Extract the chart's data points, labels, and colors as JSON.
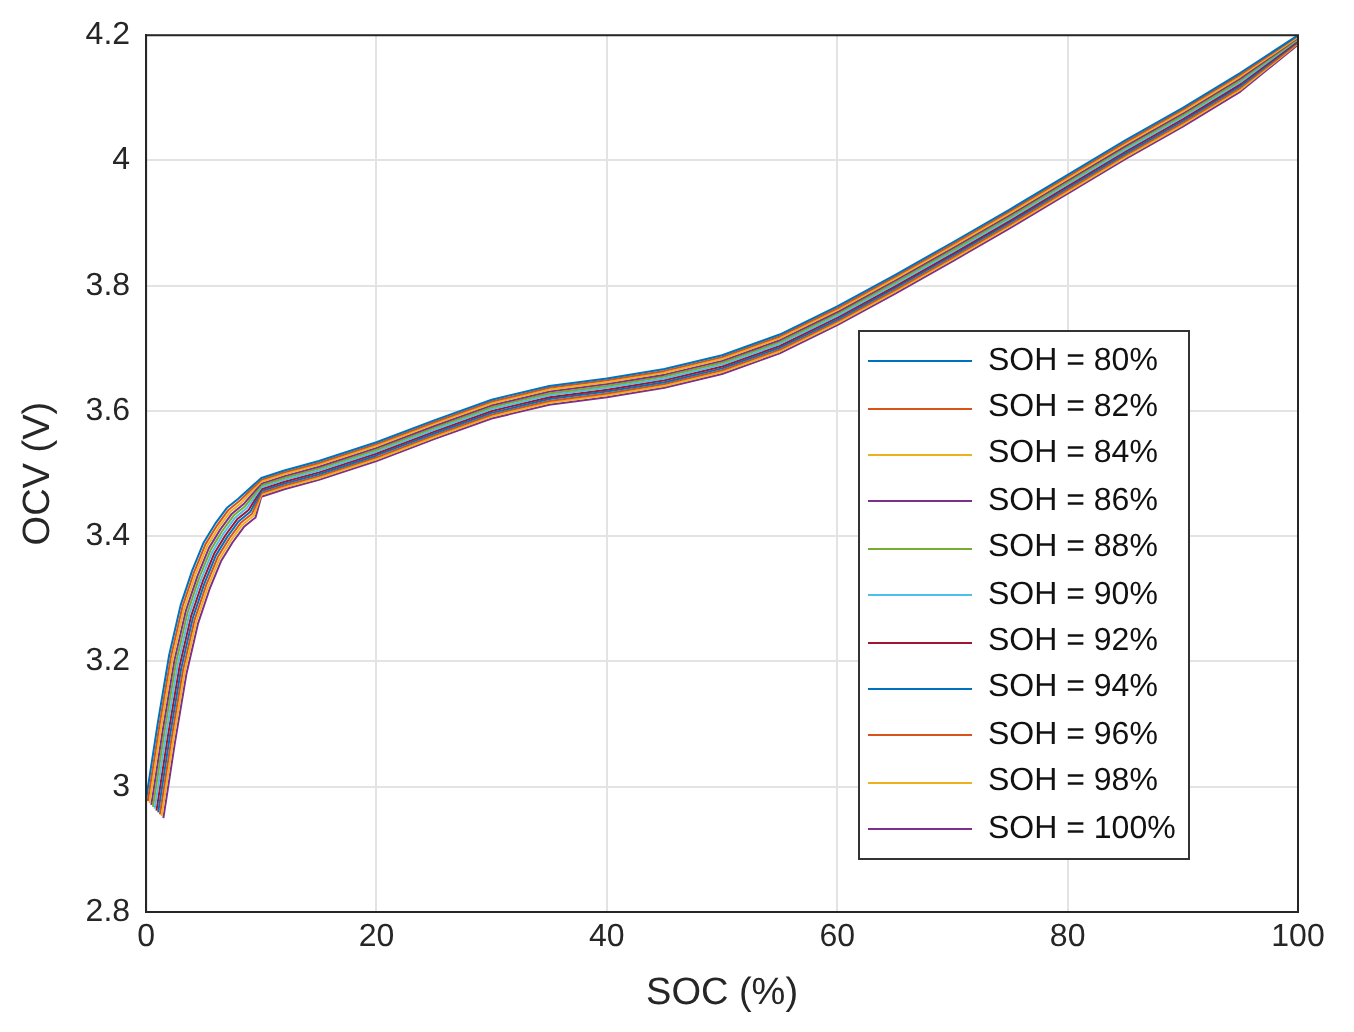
{
  "chart_data": {
    "type": "line",
    "xlabel": "SOC (%)",
    "ylabel": "OCV (V)",
    "xlim": [
      0,
      100
    ],
    "xticks": [
      0,
      20,
      40,
      60,
      80,
      100
    ],
    "ylim": [
      2.8,
      4.2
    ],
    "yticks": [
      2.8,
      3,
      3.2,
      3.4,
      3.6,
      3.8,
      4,
      4.2
    ],
    "grid": true,
    "legend": "bottom right",
    "marker": "none",
    "line_style": "solid",
    "series": [
      {
        "name": "SOH = 80%",
        "color": "#0072bd",
        "x": [
          0,
          1,
          2,
          3,
          4,
          5,
          6,
          7,
          8,
          10,
          12,
          15,
          20,
          25,
          30,
          35,
          40,
          45,
          50,
          55,
          60,
          65,
          70,
          75,
          80,
          85,
          90,
          95,
          100
        ],
        "values": [
          2.98,
          3.1,
          3.21,
          3.29,
          3.345,
          3.39,
          3.42,
          3.445,
          3.46,
          3.493,
          3.505,
          3.52,
          3.55,
          3.585,
          3.618,
          3.64,
          3.652,
          3.667,
          3.689,
          3.722,
          3.767,
          3.817,
          3.869,
          3.922,
          3.977,
          4.032,
          4.084,
          4.14,
          4.2
        ]
      },
      {
        "name": "SOH = 82%",
        "color": "#d95319",
        "x": [
          0.15,
          1.15,
          2.15,
          3.15,
          4.15,
          5.15,
          6.15,
          7.15,
          8.15,
          10,
          12,
          15,
          20,
          25,
          30,
          35,
          40,
          45,
          50,
          55,
          60,
          65,
          70,
          75,
          80,
          85,
          90,
          95,
          100
        ],
        "values": [
          2.977,
          3.097,
          3.207,
          3.287,
          3.342,
          3.387,
          3.417,
          3.442,
          3.457,
          3.49,
          3.502,
          3.517,
          3.547,
          3.582,
          3.615,
          3.637,
          3.649,
          3.664,
          3.686,
          3.719,
          3.764,
          3.814,
          3.866,
          3.919,
          3.974,
          4.029,
          4.081,
          4.137,
          4.199
        ]
      },
      {
        "name": "SOH = 84%",
        "color": "#edb120",
        "x": [
          0.3,
          1.3,
          2.3,
          3.3,
          4.3,
          5.3,
          6.3,
          7.3,
          8.3,
          10,
          12,
          15,
          20,
          25,
          30,
          35,
          40,
          45,
          50,
          55,
          60,
          65,
          70,
          75,
          80,
          85,
          90,
          95,
          100
        ],
        "values": [
          2.974,
          3.094,
          3.204,
          3.284,
          3.339,
          3.384,
          3.414,
          3.439,
          3.454,
          3.487,
          3.499,
          3.514,
          3.544,
          3.579,
          3.612,
          3.634,
          3.646,
          3.661,
          3.683,
          3.716,
          3.761,
          3.811,
          3.863,
          3.916,
          3.971,
          4.026,
          4.078,
          4.134,
          4.197
        ]
      },
      {
        "name": "SOH = 86%",
        "color": "#7e2f8e",
        "x": [
          0.45,
          1.45,
          2.45,
          3.45,
          4.45,
          5.45,
          6.45,
          7.45,
          8.45,
          10,
          12,
          15,
          20,
          25,
          30,
          35,
          40,
          45,
          50,
          55,
          60,
          65,
          70,
          75,
          80,
          85,
          90,
          95,
          100
        ],
        "values": [
          2.971,
          3.091,
          3.201,
          3.281,
          3.336,
          3.381,
          3.411,
          3.436,
          3.451,
          3.484,
          3.496,
          3.511,
          3.541,
          3.576,
          3.609,
          3.631,
          3.643,
          3.658,
          3.68,
          3.713,
          3.758,
          3.808,
          3.86,
          3.913,
          3.968,
          4.023,
          4.075,
          4.131,
          4.196
        ]
      },
      {
        "name": "SOH = 88%",
        "color": "#77ac30",
        "x": [
          0.6,
          1.6,
          2.6,
          3.6,
          4.6,
          5.6,
          6.6,
          7.6,
          8.6,
          10,
          12,
          15,
          20,
          25,
          30,
          35,
          40,
          45,
          50,
          55,
          60,
          65,
          70,
          75,
          80,
          85,
          90,
          95,
          100
        ],
        "values": [
          2.968,
          3.088,
          3.198,
          3.278,
          3.333,
          3.378,
          3.408,
          3.433,
          3.448,
          3.481,
          3.493,
          3.508,
          3.538,
          3.573,
          3.606,
          3.628,
          3.64,
          3.655,
          3.677,
          3.71,
          3.755,
          3.805,
          3.857,
          3.91,
          3.965,
          4.02,
          4.072,
          4.128,
          4.194
        ]
      },
      {
        "name": "SOH = 90%",
        "color": "#4dbeee",
        "x": [
          0.75,
          1.75,
          2.75,
          3.75,
          4.75,
          5.75,
          6.75,
          7.75,
          8.75,
          10,
          12,
          15,
          20,
          25,
          30,
          35,
          40,
          45,
          50,
          55,
          60,
          65,
          70,
          75,
          80,
          85,
          90,
          95,
          100
        ],
        "values": [
          2.965,
          3.085,
          3.195,
          3.275,
          3.33,
          3.375,
          3.405,
          3.43,
          3.445,
          3.478,
          3.49,
          3.505,
          3.535,
          3.57,
          3.603,
          3.625,
          3.637,
          3.652,
          3.674,
          3.707,
          3.752,
          3.802,
          3.854,
          3.907,
          3.962,
          4.017,
          4.069,
          4.125,
          4.193
        ]
      },
      {
        "name": "SOH = 92%",
        "color": "#a2142f",
        "x": [
          0.9,
          1.9,
          2.9,
          3.9,
          4.9,
          5.9,
          6.9,
          7.9,
          8.9,
          10,
          12,
          15,
          20,
          25,
          30,
          35,
          40,
          45,
          50,
          55,
          60,
          65,
          70,
          75,
          80,
          85,
          90,
          95,
          100
        ],
        "values": [
          2.962,
          3.082,
          3.192,
          3.272,
          3.327,
          3.372,
          3.402,
          3.427,
          3.442,
          3.475,
          3.487,
          3.502,
          3.532,
          3.567,
          3.6,
          3.622,
          3.634,
          3.649,
          3.671,
          3.704,
          3.749,
          3.799,
          3.851,
          3.904,
          3.959,
          4.014,
          4.066,
          4.122,
          4.191
        ]
      },
      {
        "name": "SOH = 94%",
        "color": "#0072bd",
        "x": [
          1.05,
          2.05,
          3.05,
          4.05,
          5.05,
          6.05,
          7.05,
          8.05,
          9.05,
          10,
          12,
          15,
          20,
          25,
          30,
          35,
          40,
          45,
          50,
          55,
          60,
          65,
          70,
          75,
          80,
          85,
          90,
          95,
          100
        ],
        "values": [
          2.959,
          3.079,
          3.189,
          3.269,
          3.324,
          3.369,
          3.399,
          3.424,
          3.439,
          3.472,
          3.484,
          3.499,
          3.529,
          3.564,
          3.597,
          3.619,
          3.631,
          3.646,
          3.668,
          3.701,
          3.746,
          3.796,
          3.848,
          3.901,
          3.956,
          4.011,
          4.063,
          4.119,
          4.19
        ]
      },
      {
        "name": "SOH = 96%",
        "color": "#d95319",
        "x": [
          1.2,
          2.2,
          3.2,
          4.2,
          5.2,
          6.2,
          7.2,
          8.2,
          9.2,
          10,
          12,
          15,
          20,
          25,
          30,
          35,
          40,
          45,
          50,
          55,
          60,
          65,
          70,
          75,
          80,
          85,
          90,
          95,
          100
        ],
        "values": [
          2.956,
          3.076,
          3.186,
          3.266,
          3.321,
          3.366,
          3.396,
          3.421,
          3.436,
          3.469,
          3.481,
          3.496,
          3.526,
          3.561,
          3.594,
          3.616,
          3.628,
          3.643,
          3.665,
          3.698,
          3.743,
          3.793,
          3.845,
          3.898,
          3.953,
          4.008,
          4.06,
          4.116,
          4.188
        ]
      },
      {
        "name": "SOH = 98%",
        "color": "#edb120",
        "x": [
          1.35,
          2.35,
          3.35,
          4.35,
          5.35,
          6.35,
          7.35,
          8.35,
          9.35,
          10,
          12,
          15,
          20,
          25,
          30,
          35,
          40,
          45,
          50,
          55,
          60,
          65,
          70,
          75,
          80,
          85,
          90,
          95,
          100
        ],
        "values": [
          2.953,
          3.073,
          3.183,
          3.263,
          3.318,
          3.363,
          3.393,
          3.418,
          3.433,
          3.466,
          3.478,
          3.493,
          3.523,
          3.558,
          3.591,
          3.613,
          3.625,
          3.64,
          3.662,
          3.695,
          3.74,
          3.79,
          3.842,
          3.895,
          3.95,
          4.005,
          4.057,
          4.113,
          4.187
        ]
      },
      {
        "name": "SOH = 100%",
        "color": "#7e2f8e",
        "x": [
          1.5,
          2.5,
          3.5,
          4.5,
          5.5,
          6.5,
          7.5,
          8.5,
          9.5,
          10,
          12,
          15,
          20,
          25,
          30,
          35,
          40,
          45,
          50,
          55,
          60,
          65,
          70,
          75,
          80,
          85,
          90,
          95,
          100
        ],
        "values": [
          2.95,
          3.07,
          3.18,
          3.26,
          3.315,
          3.36,
          3.39,
          3.415,
          3.43,
          3.463,
          3.475,
          3.49,
          3.52,
          3.555,
          3.588,
          3.61,
          3.622,
          3.637,
          3.659,
          3.692,
          3.737,
          3.787,
          3.839,
          3.892,
          3.947,
          4.002,
          4.054,
          4.11,
          4.185
        ]
      }
    ]
  }
}
